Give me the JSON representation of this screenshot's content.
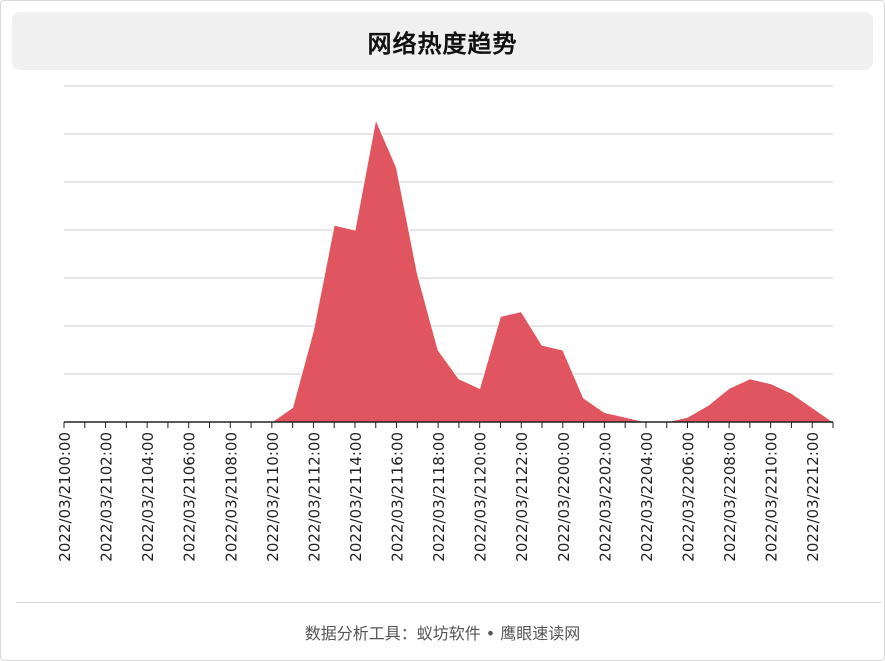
{
  "title": "网络热度趋势",
  "footer": "数据分析工具：蚁坊软件 • 鹰眼速读网",
  "colors": {
    "area": "#e05560",
    "grid": "#cccccc",
    "axis": "#222222"
  },
  "chart_data": {
    "type": "area",
    "title": "网络热度趋势",
    "xlabel": "",
    "ylabel": "",
    "grid": true,
    "x": [
      "2022/03/21 00:00",
      "2022/03/21 01:00",
      "2022/03/21 02:00",
      "2022/03/21 03:00",
      "2022/03/21 04:00",
      "2022/03/21 05:00",
      "2022/03/21 06:00",
      "2022/03/21 07:00",
      "2022/03/21 08:00",
      "2022/03/21 09:00",
      "2022/03/21 10:00",
      "2022/03/21 11:00",
      "2022/03/21 12:00",
      "2022/03/21 13:00",
      "2022/03/21 14:00",
      "2022/03/21 15:00",
      "2022/03/21 16:00",
      "2022/03/21 17:00",
      "2022/03/21 18:00",
      "2022/03/21 19:00",
      "2022/03/21 20:00",
      "2022/03/21 21:00",
      "2022/03/21 22:00",
      "2022/03/21 23:00",
      "2022/03/22 00:00",
      "2022/03/22 01:00",
      "2022/03/22 02:00",
      "2022/03/22 03:00",
      "2022/03/22 04:00",
      "2022/03/22 05:00",
      "2022/03/22 06:00",
      "2022/03/22 07:00",
      "2022/03/22 08:00",
      "2022/03/22 09:00",
      "2022/03/22 10:00",
      "2022/03/22 11:00",
      "2022/03/22 12:00",
      "2022/03/22 13:00"
    ],
    "tick_labels": [
      "2022/03/2100:00",
      "2022/03/2102:00",
      "2022/03/2104:00",
      "2022/03/2106:00",
      "2022/03/2108:00",
      "2022/03/2110:00",
      "2022/03/2112:00",
      "2022/03/2114:00",
      "2022/03/2116:00",
      "2022/03/2118:00",
      "2022/03/2120:00",
      "2022/03/2122:00",
      "2022/03/2200:00",
      "2022/03/2202:00",
      "2022/03/2204:00",
      "2022/03/2206:00",
      "2022/03/2208:00",
      "2022/03/2210:00",
      "2022/03/2212:00"
    ],
    "y": [
      0,
      0,
      0,
      0,
      0,
      0,
      0,
      0,
      0,
      0,
      0,
      3,
      19,
      41,
      40,
      63,
      53,
      31,
      15,
      9,
      7,
      22,
      23,
      16,
      15,
      5,
      2,
      1,
      0,
      0,
      1,
      3.5,
      7,
      9,
      8,
      6,
      3,
      0
    ],
    "ylim": [
      0,
      70
    ],
    "y_gridlines": [
      0,
      10,
      20,
      30,
      40,
      50,
      60,
      70
    ]
  }
}
